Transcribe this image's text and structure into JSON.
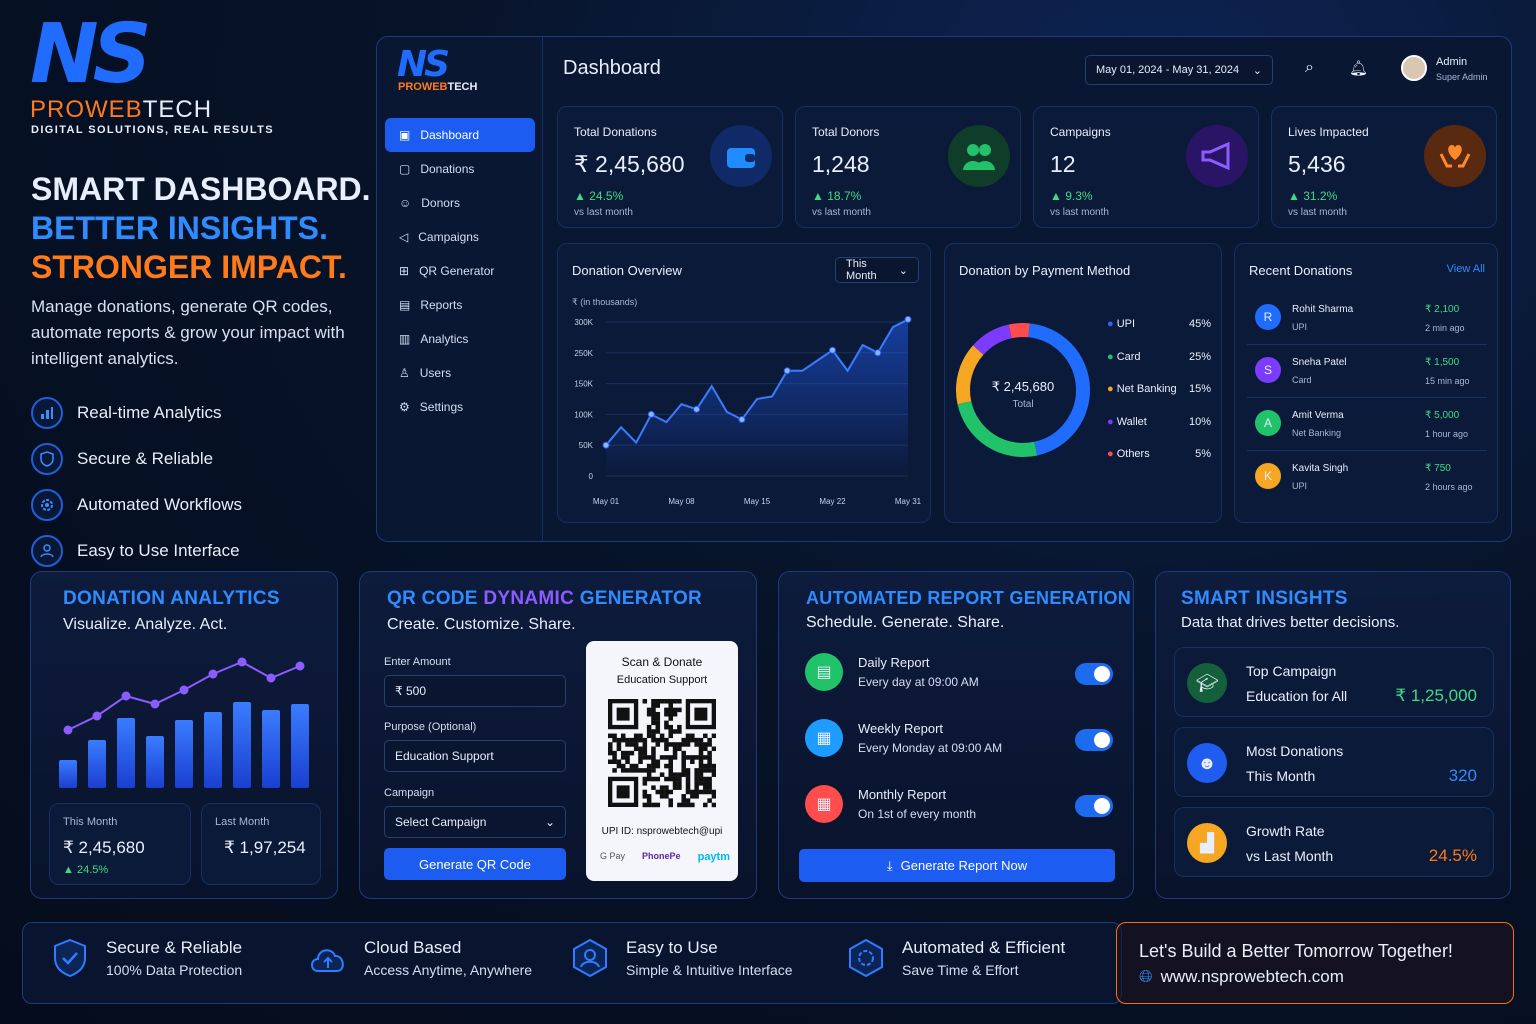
{
  "brand": {
    "logo_letters": "NS",
    "name": "PROWEBTECH",
    "name_a": "PROWEB",
    "name_b": "TECH",
    "tagline": "DIGITAL SOLUTIONS, REAL RESULTS"
  },
  "hero": {
    "line1": "SMART DASHBOARD.",
    "line2": "BETTER INSIGHTS.",
    "line3": "STRONGER IMPACT.",
    "desc": "Manage donations, generate QR codes, automate reports & grow your impact with intelligent analytics.",
    "features": [
      {
        "label": "Real-time Analytics",
        "icon": "bar-chart-icon"
      },
      {
        "label": "Secure & Reliable",
        "icon": "shield-icon"
      },
      {
        "label": "Automated Workflows",
        "icon": "gear-icon"
      },
      {
        "label": "Easy to Use Interface",
        "icon": "user-icon"
      }
    ]
  },
  "sidebar": {
    "items": [
      {
        "label": "Dashboard",
        "icon": "dashboard-icon"
      },
      {
        "label": "Donations",
        "icon": "donations-icon"
      },
      {
        "label": "Donors",
        "icon": "donors-icon"
      },
      {
        "label": "Campaigns",
        "icon": "megaphone-icon"
      },
      {
        "label": "QR Generator",
        "icon": "qr-icon"
      },
      {
        "label": "Reports",
        "icon": "reports-icon"
      },
      {
        "label": "Analytics",
        "icon": "analytics-icon"
      },
      {
        "label": "Users",
        "icon": "users-icon"
      },
      {
        "label": "Settings",
        "icon": "settings-icon"
      }
    ]
  },
  "header": {
    "title": "Dashboard",
    "date_range": "May 01, 2024 - May 31, 2024",
    "user_name": "Admin",
    "user_role": "Super Admin"
  },
  "kpis": [
    {
      "label": "Total Donations",
      "value": "₹ 2,45,680",
      "change": "24.5%",
      "sub": "vs last month",
      "icon": "wallet-icon",
      "color": "#1f6cff"
    },
    {
      "label": "Total Donors",
      "value": "1,248",
      "change": "18.7%",
      "sub": "vs last month",
      "icon": "donors-icon",
      "color": "#21c26a"
    },
    {
      "label": "Campaigns",
      "value": "12",
      "change": "9.3%",
      "sub": "vs last month",
      "icon": "megaphone-icon",
      "color": "#7b3cff"
    },
    {
      "label": "Lives Impacted",
      "value": "5,436",
      "change": "31.2%",
      "sub": "vs last month",
      "icon": "heart-hands-icon",
      "color": "#ff7a1a"
    }
  ],
  "overview": {
    "title": "Donation Overview",
    "filter": "This Month",
    "unit": "₹ (in thousands)",
    "yticks": [
      "300K",
      "250K",
      "150K",
      "100K",
      "50K",
      "0"
    ],
    "xticks": [
      "May 01",
      "May 08",
      "May 15",
      "May 22",
      "May 31"
    ]
  },
  "chart_data": [
    {
      "type": "area",
      "title": "Donation Overview",
      "ylabel": "₹ (in thousands)",
      "x": [
        "May 01",
        "",
        "",
        "",
        "",
        "May 08",
        "",
        "",
        "",
        "",
        "May 15",
        "",
        "",
        "",
        "",
        "May 22",
        "",
        "",
        "",
        "",
        "May 31"
      ],
      "y": [
        60,
        95,
        65,
        120,
        105,
        140,
        130,
        175,
        125,
        110,
        150,
        155,
        205,
        205,
        225,
        245,
        205,
        255,
        240,
        290,
        305
      ],
      "grid": true
    },
    {
      "type": "pie",
      "title": "Donation by Payment Method",
      "categories": [
        "UPI",
        "Card",
        "Net Banking",
        "Wallet",
        "Others"
      ],
      "values": [
        45,
        25,
        15,
        10,
        5
      ],
      "colors": [
        "#1f6cff",
        "#21c26a",
        "#f5a623",
        "#7b3cff",
        "#ff4d4d"
      ]
    },
    {
      "type": "bar",
      "title": "DONATION ANALYTICS",
      "categories": [
        "",
        "",
        "",
        "",
        "",
        "",
        "",
        "",
        ""
      ],
      "values": [
        28,
        48,
        70,
        52,
        68,
        76,
        86,
        78,
        84
      ],
      "line": [
        36,
        50,
        70,
        62,
        76,
        92,
        104,
        88,
        100
      ]
    }
  ],
  "payment": {
    "title": "Donation by Payment Method",
    "center_value": "₹ 2,45,680",
    "center_label": "Total",
    "legend": [
      {
        "name": "UPI",
        "pct": "45%"
      },
      {
        "name": "Card",
        "pct": "25%"
      },
      {
        "name": "Net Banking",
        "pct": "15%"
      },
      {
        "name": "Wallet",
        "pct": "10%"
      },
      {
        "name": "Others",
        "pct": "5%"
      }
    ]
  },
  "recent": {
    "title": "Recent Donations",
    "view_all": "View All",
    "rows": [
      {
        "initial": "R",
        "name": "Rohit Sharma",
        "method": "UPI",
        "amount": "₹ 2,100",
        "time": "2 min ago",
        "color": "#1f6cff"
      },
      {
        "initial": "S",
        "name": "Sneha Patel",
        "method": "Card",
        "amount": "₹ 1,500",
        "time": "15 min ago",
        "color": "#7b3cff"
      },
      {
        "initial": "A",
        "name": "Amit Verma",
        "method": "Net Banking",
        "amount": "₹ 5,000",
        "time": "1 hour ago",
        "color": "#21c26a"
      },
      {
        "initial": "K",
        "name": "Kavita Singh",
        "method": "UPI",
        "amount": "₹ 750",
        "time": "2 hours ago",
        "color": "#f5a623"
      }
    ]
  },
  "analytics": {
    "title": "DONATION ANALYTICS",
    "subtitle": "Visualize. Analyze. Act.",
    "this_label": "This Month",
    "this_value": "₹ 2,45,680",
    "this_change": "24.5%",
    "last_label": "Last Month",
    "last_value": "₹ 1,97,254"
  },
  "qr": {
    "title_a": "QR CODE ",
    "title_b": "DYNAMIC ",
    "title_c": "GENERATOR",
    "subtitle": "Create. Customize. Share.",
    "amount_label": "Enter Amount",
    "amount_value": "₹ 500",
    "purpose_label": "Purpose (Optional)",
    "purpose_value": "Education Support",
    "campaign_label": "Campaign",
    "campaign_value": "Select Campaign",
    "button": "Generate QR Code",
    "card_title": "Scan & Donate",
    "card_sub": "Education Support",
    "upi": "UPI ID: nsprowebtech@upi",
    "pay1": "G Pay",
    "pay2": "PhonePe",
    "pay3": "paytm"
  },
  "reports": {
    "title": "AUTOMATED REPORT GENERATION",
    "subtitle": "Schedule. Generate. Share.",
    "items": [
      {
        "name": "Daily Report",
        "when": "Every day at 09:00 AM",
        "color": "#21c26a",
        "icon": "document-icon"
      },
      {
        "name": "Weekly Report",
        "when": "Every Monday at 09:00 AM",
        "color": "#1f9cff",
        "icon": "calendar-icon"
      },
      {
        "name": "Monthly Report",
        "when": "On 1st of every month",
        "color": "#ff4d4d",
        "icon": "calendar-icon"
      }
    ],
    "button": "Generate Report Now"
  },
  "insights": {
    "title": "SMART INSIGHTS",
    "subtitle": "Data that drives better decisions.",
    "items": [
      {
        "label": "Top Campaign",
        "sub": "Education for All",
        "value": "₹ 1,25,000",
        "color": "#21c26a",
        "vcolor": "#3ddc84",
        "icon": "graduation-cap-icon"
      },
      {
        "label": "Most Donations",
        "sub": "This Month",
        "value": "320",
        "color": "#1f6cff",
        "vcolor": "#2f8cff",
        "icon": "users-icon"
      },
      {
        "label": "Growth Rate",
        "sub": "vs Last Month",
        "value": "24.5%",
        "color": "#f5a623",
        "vcolor": "#ff7a1a",
        "icon": "growth-chart-icon"
      }
    ]
  },
  "footer": {
    "features": [
      {
        "title": "Secure & Reliable",
        "sub": "100% Data Protection",
        "icon": "shield-icon"
      },
      {
        "title": "Cloud Based",
        "sub": "Access Anytime, Anywhere",
        "icon": "cloud-icon"
      },
      {
        "title": "Easy to Use",
        "sub": "Simple & Intuitive Interface",
        "icon": "user-icon"
      },
      {
        "title": "Automated & Efficient",
        "sub": "Save Time & Effort",
        "icon": "gear-icon"
      }
    ],
    "cta": "Let's Build a Better Tomorrow Together!",
    "url": "www.nsprowebtech.com"
  }
}
